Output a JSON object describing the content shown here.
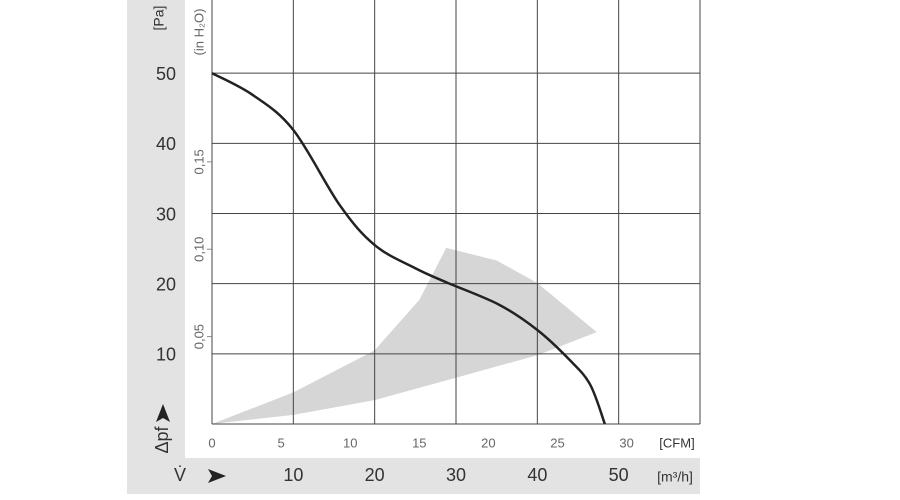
{
  "chart_data": {
    "type": "line",
    "x": [
      0,
      5,
      10,
      15.7,
      20,
      25,
      28.8,
      35.3,
      40,
      44,
      46.5,
      48.3
    ],
    "series": [
      {
        "name": null,
        "color": "#222222",
        "values": [
          50,
          46.9,
          41.9,
          31.2,
          25.5,
          22.2,
          20.2,
          17,
          13.4,
          9.1,
          5.6,
          0
        ]
      }
    ],
    "region": {
      "color": "#d6d6d6",
      "x": [
        0,
        10,
        20,
        25.5,
        28.8,
        35,
        40,
        47.3,
        40,
        30,
        20,
        10,
        0
      ],
      "y": [
        0,
        4.5,
        10.5,
        17.7,
        25.1,
        23.3,
        20.1,
        13.1,
        9.8,
        6.6,
        3.4,
        1.3,
        0
      ]
    },
    "xlabel": "V̇",
    "xunit": "[m³/h]",
    "ylabel": "Δpf",
    "yunit": "[Pa]",
    "x2unit": "[CFM]",
    "y2unit": "(in H₂O)",
    "xlim": [
      0,
      60
    ],
    "xticks": [
      10,
      20,
      30,
      40,
      50
    ],
    "ylim": [
      0,
      60
    ],
    "yticks": [
      10,
      20,
      30,
      40,
      50
    ],
    "x2lim": [
      0,
      35.31
    ],
    "x2ticks": [
      0,
      5,
      10,
      15,
      20,
      25,
      30
    ],
    "y2lim": [
      0,
      0.2409
    ],
    "y2ticks": [
      {
        "value": 0.05,
        "label": "0,05"
      },
      {
        "value": 0.1,
        "label": "0,10"
      },
      {
        "value": 0.15,
        "label": "0,15"
      }
    ],
    "grid": true
  }
}
